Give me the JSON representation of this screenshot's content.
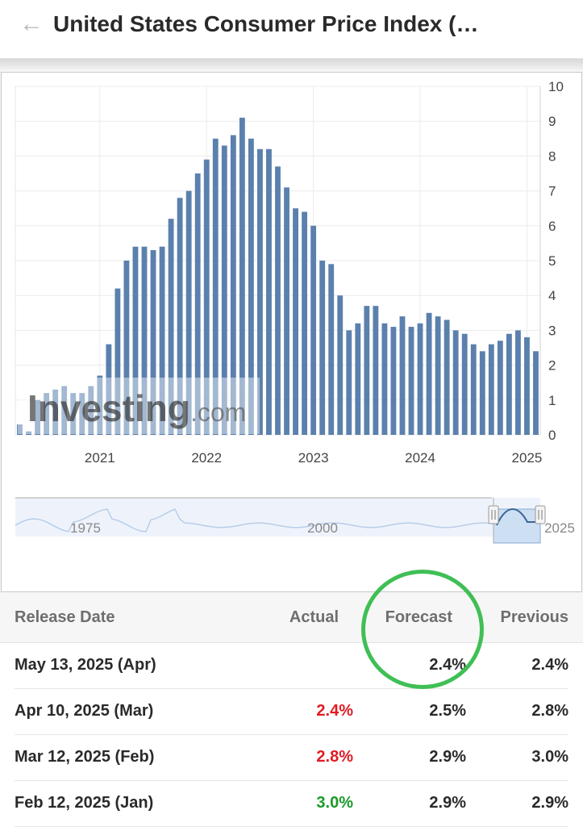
{
  "header": {
    "back_icon": "arrow-left-icon",
    "title": "United States Consumer Price Index (…"
  },
  "chart_data": {
    "type": "bar",
    "ylim": [
      0,
      10
    ],
    "y_ticks": [
      "10",
      "9",
      "8",
      "7",
      "6",
      "5",
      "4",
      "3",
      "2",
      "1",
      "0"
    ],
    "x_tick_labels": [
      "2021",
      "2022",
      "2023",
      "2024",
      "2025"
    ],
    "color": "#5b80ad",
    "values": [
      0.3,
      0.1,
      1.0,
      1.2,
      1.3,
      1.4,
      1.2,
      1.2,
      1.4,
      1.7,
      2.6,
      4.2,
      5.0,
      5.4,
      5.4,
      5.3,
      5.4,
      6.2,
      6.8,
      7.0,
      7.5,
      7.9,
      8.5,
      8.3,
      8.6,
      9.1,
      8.5,
      8.2,
      8.2,
      7.7,
      7.1,
      6.5,
      6.4,
      6.0,
      5.0,
      4.9,
      4.0,
      3.0,
      3.2,
      3.7,
      3.7,
      3.2,
      3.1,
      3.4,
      3.1,
      3.2,
      3.5,
      3.4,
      3.3,
      3.0,
      2.9,
      2.6,
      2.4,
      2.6,
      2.7,
      2.9,
      3.0,
      2.8,
      2.4
    ],
    "navigator": {
      "labels": [
        "1975",
        "2000",
        "2025"
      ]
    },
    "watermark": "Investing.com"
  },
  "table": {
    "headers": {
      "release_date": "Release Date",
      "actual": "Actual",
      "forecast": "Forecast",
      "previous": "Previous"
    },
    "rows": [
      {
        "date": "May 13, 2025 (Apr)",
        "actual": "",
        "actual_color": "#2a2a2a",
        "forecast": "2.4%",
        "previous": "2.4%"
      },
      {
        "date": "Apr 10, 2025 (Mar)",
        "actual": "2.4%",
        "actual_color": "#e01b24",
        "forecast": "2.5%",
        "previous": "2.8%"
      },
      {
        "date": "Mar 12, 2025 (Feb)",
        "actual": "2.8%",
        "actual_color": "#e01b24",
        "forecast": "2.9%",
        "previous": "3.0%"
      },
      {
        "date": "Feb 12, 2025 (Jan)",
        "actual": "3.0%",
        "actual_color": "#1a9a2a",
        "forecast": "2.9%",
        "previous": "2.9%"
      }
    ]
  },
  "annotation": {
    "circle_color": "#3fbf55"
  }
}
